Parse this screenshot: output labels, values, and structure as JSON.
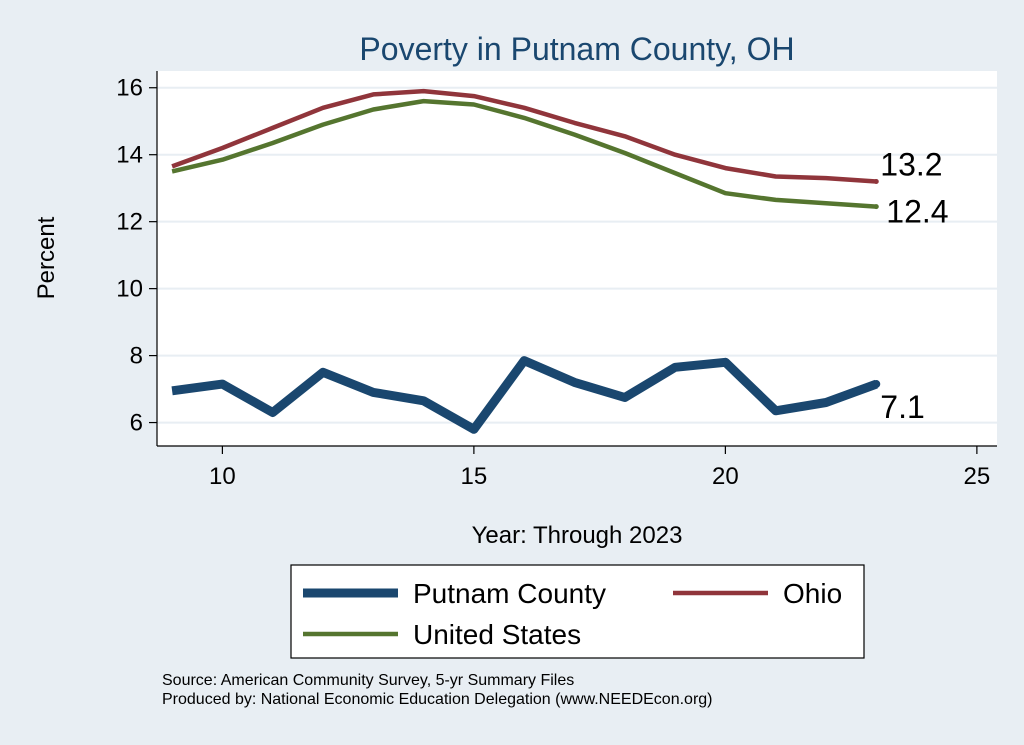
{
  "chart_data": {
    "type": "line",
    "title": "Poverty in Putnam County, OH",
    "xlabel": "Year: Through 2023",
    "ylabel": "Percent",
    "xlim": [
      8.7,
      25.4
    ],
    "ylim": [
      5.3,
      16.5
    ],
    "x_ticks": [
      10,
      15,
      20,
      25
    ],
    "y_ticks": [
      6,
      8,
      10,
      12,
      14,
      16
    ],
    "grid": true,
    "legend_position": "bottom",
    "series": [
      {
        "name": "Putnam County",
        "color": "#1a476f",
        "x": [
          9,
          10,
          11,
          12,
          13,
          14,
          15,
          16,
          17,
          18,
          19,
          20,
          21,
          22,
          23
        ],
        "values": [
          6.95,
          7.15,
          6.3,
          7.5,
          6.9,
          6.65,
          5.8,
          7.85,
          7.2,
          6.75,
          7.65,
          7.8,
          6.35,
          6.6,
          7.15
        ],
        "end_label": "7.1"
      },
      {
        "name": "Ohio",
        "color": "#90353b",
        "x": [
          9,
          10,
          11,
          12,
          13,
          14,
          15,
          16,
          17,
          18,
          19,
          20,
          21,
          22,
          23
        ],
        "values": [
          13.65,
          14.2,
          14.8,
          15.4,
          15.8,
          15.9,
          15.75,
          15.4,
          14.95,
          14.55,
          14.0,
          13.6,
          13.35,
          13.3,
          13.2
        ],
        "end_label": "13.2"
      },
      {
        "name": "United States",
        "color": "#55752f",
        "x": [
          9,
          10,
          11,
          12,
          13,
          14,
          15,
          16,
          17,
          18,
          19,
          20,
          21,
          22,
          23
        ],
        "values": [
          13.5,
          13.85,
          14.35,
          14.9,
          15.35,
          15.6,
          15.5,
          15.1,
          14.6,
          14.05,
          13.45,
          12.85,
          12.65,
          12.55,
          12.45
        ],
        "end_label": "12.4"
      }
    ]
  },
  "source": {
    "line1": "Source: American Community Survey, 5-yr Summary Files",
    "line2": "Produced by: National Economic Education Delegation (www.NEEDEcon.org)"
  }
}
